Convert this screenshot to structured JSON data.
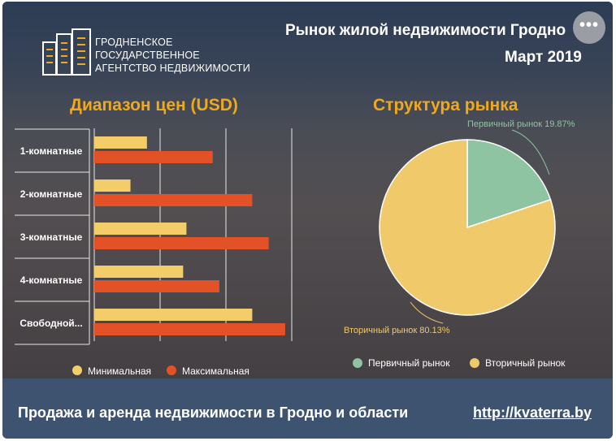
{
  "header": {
    "logo_lines": [
      "ГРОДНЕНСКОЕ",
      "ГОСУДАРСТВЕННОЕ",
      "АГЕНТСТВО НЕДВИЖИМОСТИ"
    ],
    "title": "Рынок жилой недвижимости Гродно",
    "subtitle": "Март 2019",
    "more_button": "•••"
  },
  "footer": {
    "text": "Продажа и аренда недвижимости в Гродно и области",
    "link": "http://kvaterra.by"
  },
  "colors": {
    "min": "#f2cd6a",
    "max": "#e35226",
    "primary_market": "#8fc4a2",
    "secondary_market": "#f0c96a",
    "section_title": "#f0a81c"
  },
  "chart_data": [
    {
      "type": "bar",
      "orientation": "horizontal",
      "title": "Диапазон цен (USD)",
      "categories": [
        "1-комнатные",
        "2-комнатные",
        "3-комнатные",
        "4-комнатные",
        "Свободной..."
      ],
      "series": [
        {
          "name": "Минимальная",
          "values": [
            16000,
            11000,
            28000,
            27000,
            48000
          ]
        },
        {
          "name": "Максимальная",
          "values": [
            36000,
            48000,
            53000,
            38000,
            58000
          ]
        }
      ],
      "xlim": [
        0,
        60000
      ],
      "grid": true,
      "legend_position": "bottom"
    },
    {
      "type": "pie",
      "title": "Структура рынка",
      "slices": [
        {
          "name": "Первичный рынок",
          "value": 19.87,
          "label": "Первичный рынок 19.87%"
        },
        {
          "name": "Вторичный рынок",
          "value": 80.13,
          "label": "Вторичный рынок 80.13%"
        }
      ],
      "legend_position": "bottom"
    }
  ]
}
